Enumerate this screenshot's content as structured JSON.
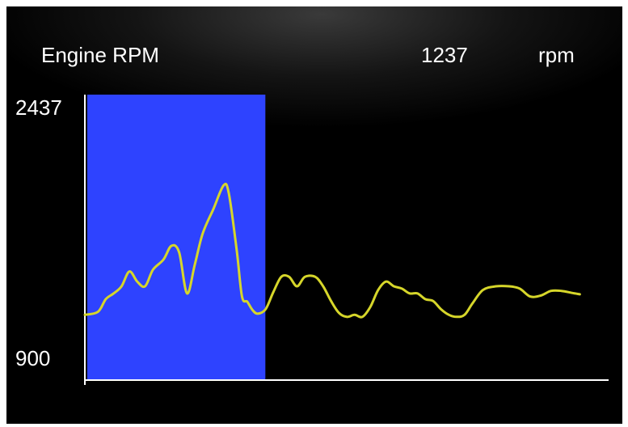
{
  "header": {
    "title": "Engine RPM",
    "value": "1237",
    "unit": "rpm"
  },
  "colors": {
    "background": "#000000",
    "line": "#d6d62a",
    "highlight": "#2e43ff",
    "axis": "#ffffff",
    "text": "#ffffff"
  },
  "chart_data": {
    "type": "line",
    "title": "Engine RPM",
    "ylim": [
      900,
      2437
    ],
    "ytick_labels": [
      "2437",
      "900"
    ],
    "highlight_x_range": [
      0,
      0.34
    ],
    "series": [
      {
        "values": [
          [
            0.0,
            1133
          ],
          [
            0.025,
            1151
          ],
          [
            0.04,
            1226
          ],
          [
            0.055,
            1260
          ],
          [
            0.07,
            1302
          ],
          [
            0.085,
            1390
          ],
          [
            0.1,
            1330
          ],
          [
            0.115,
            1302
          ],
          [
            0.13,
            1400
          ],
          [
            0.15,
            1460
          ],
          [
            0.165,
            1541
          ],
          [
            0.18,
            1504
          ],
          [
            0.195,
            1260
          ],
          [
            0.21,
            1432
          ],
          [
            0.225,
            1615
          ],
          [
            0.245,
            1757
          ],
          [
            0.265,
            1900
          ],
          [
            0.275,
            1850
          ],
          [
            0.29,
            1515
          ],
          [
            0.3,
            1242
          ],
          [
            0.31,
            1211
          ],
          [
            0.32,
            1162
          ],
          [
            0.33,
            1140
          ],
          [
            0.345,
            1166
          ],
          [
            0.36,
            1269
          ],
          [
            0.375,
            1358
          ],
          [
            0.39,
            1358
          ],
          [
            0.405,
            1302
          ],
          [
            0.42,
            1358
          ],
          [
            0.44,
            1358
          ],
          [
            0.455,
            1302
          ],
          [
            0.47,
            1215
          ],
          [
            0.485,
            1145
          ],
          [
            0.5,
            1121
          ],
          [
            0.515,
            1133
          ],
          [
            0.53,
            1121
          ],
          [
            0.545,
            1180
          ],
          [
            0.56,
            1280
          ],
          [
            0.575,
            1330
          ],
          [
            0.59,
            1302
          ],
          [
            0.605,
            1289
          ],
          [
            0.62,
            1260
          ],
          [
            0.635,
            1260
          ],
          [
            0.65,
            1226
          ],
          [
            0.665,
            1215
          ],
          [
            0.68,
            1166
          ],
          [
            0.695,
            1133
          ],
          [
            0.71,
            1121
          ],
          [
            0.725,
            1133
          ],
          [
            0.74,
            1200
          ],
          [
            0.76,
            1280
          ],
          [
            0.785,
            1302
          ],
          [
            0.81,
            1302
          ],
          [
            0.83,
            1289
          ],
          [
            0.85,
            1242
          ],
          [
            0.87,
            1247
          ],
          [
            0.89,
            1275
          ],
          [
            0.91,
            1275
          ],
          [
            0.93,
            1263
          ],
          [
            0.945,
            1255
          ]
        ]
      }
    ]
  }
}
